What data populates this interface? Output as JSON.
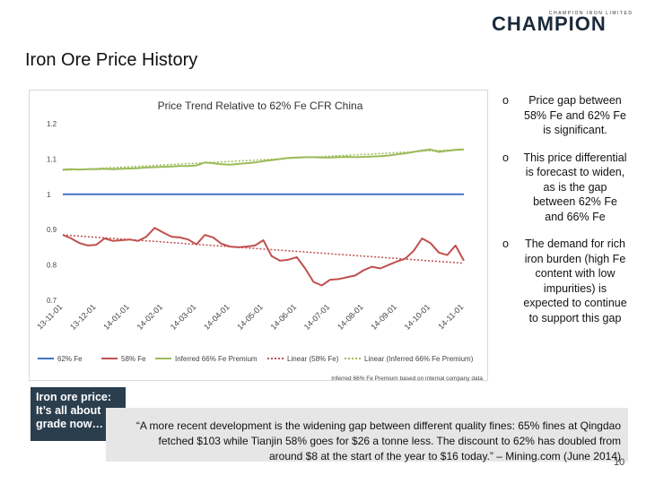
{
  "logo": {
    "tagline": "CHAMPION IRON LIMITED",
    "name": "CHAMPION"
  },
  "title": "Iron Ore Price History",
  "bullets": [
    "Price gap between 58% Fe and 62% Fe is significant.",
    "This price differential is forecast to widen, as is the gap between 62% Fe and 66% Fe",
    "The demand for rich iron burden (high Fe content with low impurities) is expected to continue to support this gap"
  ],
  "callout": "Iron ore price: It’s all about grade now…",
  "quote": "“A more recent development is the widening gap between different quality fines: 65% fines at Qingdao fetched $103 while Tianjin 58% goes for $26 a tonne less. The discount to 62% has doubled from around $8 at the start of the year to $16 today.” – Mining.com (June 2014)",
  "page_number": "10",
  "chart_data": {
    "type": "line",
    "title": "Price Trend Relative to 62% Fe CFR China",
    "footnote": "Inferred 66% Fe Premium based on internal company data",
    "categories": [
      "13-11-01",
      null,
      null,
      null,
      "13-12-01",
      null,
      null,
      null,
      "14-01-01",
      null,
      null,
      null,
      "14-02-01",
      null,
      null,
      null,
      "14-03-01",
      null,
      null,
      null,
      "14-04-01",
      null,
      null,
      null,
      "14-05-01",
      null,
      null,
      null,
      "14-06-01",
      null,
      null,
      null,
      "14-07-01",
      null,
      null,
      null,
      "14-08-01",
      null,
      null,
      null,
      "14-09-01",
      null,
      null,
      null,
      "14-10-01",
      null,
      null,
      null,
      "14-11-01"
    ],
    "ylim": [
      0.7,
      1.2
    ],
    "yticks": [
      0.7,
      0.8,
      0.9,
      1,
      1.1,
      1.2
    ],
    "grid": false,
    "legend": "bottom",
    "series": [
      {
        "name": "62% Fe",
        "color": "#4472c4",
        "dashed": false,
        "values": [
          1,
          1,
          1,
          1,
          1,
          1,
          1,
          1,
          1,
          1,
          1,
          1,
          1,
          1,
          1,
          1,
          1,
          1,
          1,
          1,
          1,
          1,
          1,
          1,
          1,
          1,
          1,
          1,
          1,
          1,
          1,
          1,
          1,
          1,
          1,
          1,
          1,
          1,
          1,
          1,
          1,
          1,
          1,
          1,
          1,
          1,
          1,
          1,
          1
        ]
      },
      {
        "name": "58% Fe",
        "color": "#c0504d",
        "dashed": false,
        "values": [
          0.885,
          0.875,
          0.862,
          0.855,
          0.857,
          0.875,
          0.868,
          0.87,
          0.872,
          0.868,
          0.88,
          0.905,
          0.892,
          0.88,
          0.878,
          0.872,
          0.858,
          0.885,
          0.878,
          0.86,
          0.852,
          0.85,
          0.852,
          0.855,
          0.87,
          0.825,
          0.812,
          0.815,
          0.822,
          0.79,
          0.752,
          0.742,
          0.758,
          0.76,
          0.765,
          0.77,
          0.785,
          0.795,
          0.79,
          0.8,
          0.81,
          0.818,
          0.84,
          0.875,
          0.862,
          0.835,
          0.828,
          0.855,
          0.812
        ]
      },
      {
        "name": "Inferred 66% Fe Premium",
        "color": "#9bbb59",
        "dashed": false,
        "values": [
          1.07,
          1.071,
          1.07,
          1.071,
          1.071,
          1.072,
          1.071,
          1.072,
          1.073,
          1.074,
          1.076,
          1.077,
          1.078,
          1.079,
          1.08,
          1.08,
          1.082,
          1.09,
          1.088,
          1.085,
          1.084,
          1.086,
          1.088,
          1.09,
          1.094,
          1.097,
          1.1,
          1.103,
          1.104,
          1.105,
          1.105,
          1.104,
          1.104,
          1.105,
          1.106,
          1.105,
          1.106,
          1.107,
          1.108,
          1.11,
          1.113,
          1.116,
          1.12,
          1.124,
          1.127,
          1.12,
          1.123,
          1.126,
          1.127
        ]
      },
      {
        "name": "Linear (58% Fe)",
        "color": "#c0504d",
        "dashed": true,
        "values": [
          0.885,
          0.8833,
          0.8817,
          0.88,
          0.8783,
          0.8767,
          0.875,
          0.8733,
          0.8717,
          0.87,
          0.8683,
          0.8667,
          0.865,
          0.8633,
          0.8617,
          0.86,
          0.8583,
          0.8567,
          0.855,
          0.8533,
          0.8517,
          0.85,
          0.8483,
          0.8467,
          0.845,
          0.8433,
          0.8417,
          0.84,
          0.8383,
          0.8367,
          0.835,
          0.8333,
          0.8317,
          0.83,
          0.8283,
          0.8267,
          0.825,
          0.8233,
          0.8217,
          0.82,
          0.8183,
          0.8167,
          0.815,
          0.8133,
          0.8117,
          0.81,
          0.8083,
          0.8067,
          0.805
        ]
      },
      {
        "name": "Linear (Inferred 66% Fe Premium)",
        "color": "#9bbb59",
        "dashed": true,
        "values": [
          1.068,
          1.0693,
          1.0705,
          1.0718,
          1.073,
          1.0743,
          1.0755,
          1.0768,
          1.078,
          1.0793,
          1.0805,
          1.0818,
          1.083,
          1.0843,
          1.0855,
          1.0868,
          1.088,
          1.0893,
          1.0905,
          1.0918,
          1.093,
          1.0943,
          1.0955,
          1.0968,
          1.098,
          1.0993,
          1.1005,
          1.1018,
          1.103,
          1.1043,
          1.1055,
          1.1068,
          1.108,
          1.1093,
          1.1105,
          1.1118,
          1.113,
          1.1143,
          1.1155,
          1.1168,
          1.118,
          1.1193,
          1.1205,
          1.1218,
          1.123,
          1.1243,
          1.1255,
          1.1268,
          1.128
        ]
      }
    ]
  }
}
